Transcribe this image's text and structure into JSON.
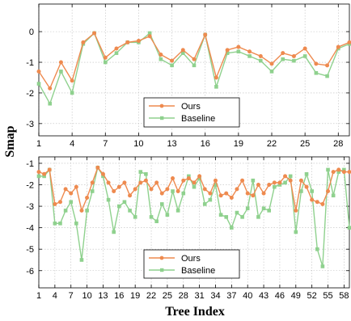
{
  "ylabel": "Smap",
  "xlabel": "Tree Index",
  "colors": {
    "ours": "#ee8a4f",
    "baseline": "#8fd18e"
  },
  "chart_data": [
    {
      "type": "line",
      "x": [
        1,
        2,
        3,
        4,
        5,
        6,
        7,
        8,
        9,
        10,
        11,
        12,
        13,
        14,
        15,
        16,
        17,
        18,
        19,
        20,
        21,
        22,
        23,
        24,
        25,
        26,
        27,
        28,
        29
      ],
      "xticks": [
        1,
        4,
        7,
        10,
        13,
        16,
        19,
        22,
        25,
        28
      ],
      "yticks": [
        0,
        -1,
        -2,
        -3
      ],
      "xlim": [
        1,
        29
      ],
      "ylim": [
        -3.4,
        0.9
      ],
      "grid": true,
      "legend": "bottom-left",
      "series": [
        {
          "name": "Ours",
          "marker": "circle",
          "values": [
            -1.3,
            -1.85,
            -1.0,
            -1.6,
            -0.35,
            -0.05,
            -0.85,
            -0.55,
            -0.35,
            -0.3,
            -0.15,
            -0.75,
            -0.95,
            -0.6,
            -0.9,
            -0.1,
            -1.5,
            -0.6,
            -0.5,
            -0.65,
            -0.8,
            -1.05,
            -0.7,
            -0.8,
            -0.55,
            -1.05,
            -1.1,
            -0.5,
            -0.35
          ]
        },
        {
          "name": "Baseline",
          "marker": "square",
          "values": [
            -1.7,
            -2.35,
            -1.3,
            -2.0,
            -0.4,
            -0.05,
            -1.0,
            -0.7,
            -0.35,
            -0.35,
            -0.05,
            -0.9,
            -1.1,
            -0.7,
            -1.1,
            -0.1,
            -1.8,
            -0.7,
            -0.65,
            -0.8,
            -0.95,
            -1.3,
            -0.9,
            -0.95,
            -0.8,
            -1.35,
            -1.45,
            -0.55,
            -0.4
          ]
        }
      ]
    },
    {
      "type": "line",
      "x": [
        1,
        2,
        3,
        4,
        5,
        6,
        7,
        8,
        9,
        10,
        11,
        12,
        13,
        14,
        15,
        16,
        17,
        18,
        19,
        20,
        21,
        22,
        23,
        24,
        25,
        26,
        27,
        28,
        29,
        30,
        31,
        32,
        33,
        34,
        35,
        36,
        37,
        38,
        39,
        40,
        41,
        42,
        43,
        44,
        45,
        46,
        47,
        48,
        49,
        50,
        51,
        52,
        53,
        54,
        55,
        56,
        57,
        58,
        59
      ],
      "xticks": [
        1,
        4,
        7,
        10,
        13,
        16,
        19,
        22,
        25,
        28,
        31,
        34,
        37,
        40,
        43,
        46,
        49,
        52,
        55,
        58
      ],
      "yticks": [
        -1,
        -2,
        -3,
        -4,
        -5,
        -6
      ],
      "xlim": [
        1,
        59
      ],
      "ylim": [
        -6.8,
        -0.7
      ],
      "grid": true,
      "legend": "bottom-center",
      "series": [
        {
          "name": "Ours",
          "marker": "circle",
          "values": [
            -1.4,
            -1.5,
            -1.3,
            -2.9,
            -2.8,
            -2.2,
            -2.4,
            -2.1,
            -3.2,
            -2.6,
            -1.9,
            -1.2,
            -1.5,
            -1.9,
            -2.3,
            -2.1,
            -1.9,
            -2.5,
            -2.2,
            -1.9,
            -1.8,
            -2.2,
            -1.9,
            -2.4,
            -2.2,
            -1.7,
            -2.3,
            -1.8,
            -1.7,
            -1.9,
            -1.6,
            -2.2,
            -2.4,
            -1.8,
            -2.5,
            -2.4,
            -2.6,
            -2.2,
            -1.8,
            -2.4,
            -2.5,
            -2.0,
            -2.4,
            -2.0,
            -1.9,
            -1.9,
            -1.6,
            -1.8,
            -3.2,
            -1.8,
            -2.1,
            -2.7,
            -2.8,
            -2.9,
            -2.3,
            -1.4,
            -1.3,
            -1.4,
            -1.4
          ]
        },
        {
          "name": "Baseline",
          "marker": "square",
          "values": [
            -1.6,
            -1.6,
            -1.3,
            -3.8,
            -3.8,
            -3.2,
            -2.8,
            -3.8,
            -5.5,
            -3.2,
            -2.3,
            -1.2,
            -1.6,
            -2.7,
            -4.2,
            -3.0,
            -2.8,
            -3.2,
            -3.5,
            -1.4,
            -1.5,
            -3.5,
            -3.7,
            -2.9,
            -3.4,
            -2.3,
            -3.2,
            -2.4,
            -1.6,
            -2.1,
            -1.7,
            -2.9,
            -2.7,
            -2.0,
            -3.4,
            -3.5,
            -4.0,
            -3.3,
            -3.5,
            -3.1,
            -1.8,
            -3.5,
            -3.1,
            -3.2,
            -2.1,
            -2.0,
            -1.9,
            -1.6,
            -4.2,
            -2.3,
            -1.5,
            -2.3,
            -5.0,
            -5.8,
            -1.3,
            -2.5,
            -1.4,
            -1.3,
            -4.0
          ]
        }
      ]
    }
  ]
}
